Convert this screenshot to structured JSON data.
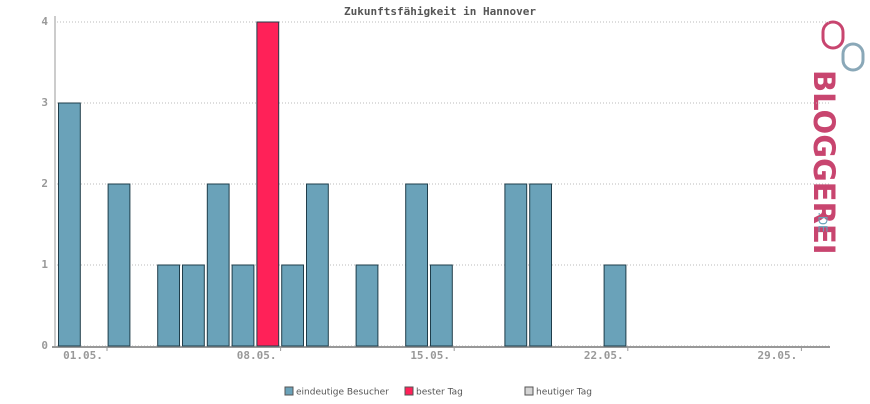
{
  "chart_data": {
    "type": "bar",
    "title": "Zukunftsfähigkeit in Hannover",
    "categories": [
      "01.05.",
      null,
      null,
      null,
      null,
      null,
      null,
      "08.05.",
      null,
      null,
      null,
      null,
      null,
      null,
      "15.05.",
      null,
      null,
      null,
      null,
      null,
      null,
      "22.05.",
      null,
      null,
      null,
      null,
      null,
      null,
      "29.05.",
      null,
      null
    ],
    "series": [
      {
        "name": "eindeutige Besucher",
        "color": "#6aa2b9",
        "values": [
          3,
          0,
          2,
          0,
          1,
          1,
          2,
          1,
          null,
          1,
          2,
          0,
          1,
          0,
          2,
          1,
          0,
          0,
          2,
          2,
          0,
          0,
          1,
          0,
          0,
          0,
          0,
          0,
          0,
          0,
          0
        ]
      },
      {
        "name": "bester Tag",
        "color": "#ff2158",
        "values": [
          null,
          null,
          null,
          null,
          null,
          null,
          null,
          null,
          4,
          null,
          null,
          null,
          null,
          null,
          null,
          null,
          null,
          null,
          null,
          null,
          null,
          null,
          null,
          null,
          null,
          null,
          null,
          null,
          null,
          null,
          null
        ]
      },
      {
        "name": "heutiger Tag",
        "color": "#d4d4d4",
        "values": [
          null,
          null,
          null,
          null,
          null,
          null,
          null,
          null,
          null,
          null,
          null,
          null,
          null,
          null,
          null,
          null,
          null,
          null,
          null,
          null,
          null,
          null,
          null,
          null,
          null,
          null,
          null,
          null,
          null,
          null,
          null
        ]
      }
    ],
    "ylim": [
      0,
      4
    ],
    "yticks": [
      0,
      1,
      2,
      3,
      4
    ],
    "grid": true,
    "logo": {
      "name": "BLOGGEREI",
      "suffix": ".DE"
    }
  }
}
